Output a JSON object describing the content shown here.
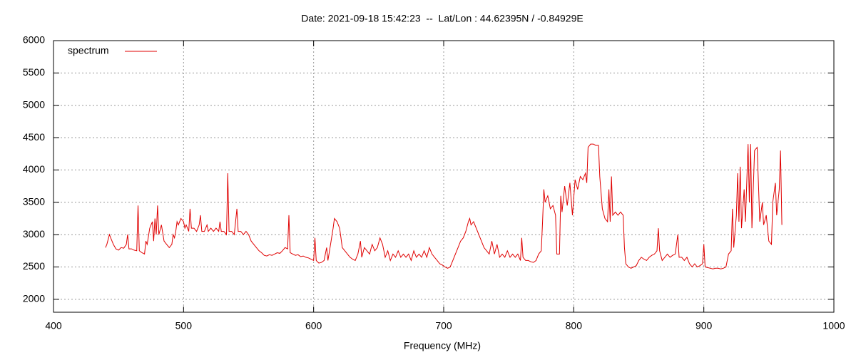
{
  "chart_data": {
    "type": "line",
    "title": "Date: 2021-09-18 15:42:23  --  Lat/Lon : 44.62395N / -0.84929E",
    "xlabel": "Frequency (MHz)",
    "xlim": [
      400,
      1000
    ],
    "xticks": [
      400,
      500,
      600,
      700,
      800,
      900,
      1000
    ],
    "ylim": [
      1800,
      6000
    ],
    "yticks": [
      2000,
      2500,
      3000,
      3500,
      4000,
      4500,
      5000,
      5500,
      6000
    ],
    "grid": true,
    "legend": "top-left",
    "series": [
      {
        "name": "spectrum",
        "color": "#e00000",
        "x": [
          440,
          441,
          443,
          444,
          446,
          448,
          450,
          452,
          454,
          456,
          457,
          458,
          460,
          462,
          464,
          465,
          466,
          468,
          470,
          471,
          472,
          474,
          476,
          477,
          478,
          479,
          480,
          481,
          483,
          485,
          487,
          489,
          491,
          492,
          493,
          494,
          495,
          496,
          498,
          500,
          501,
          502,
          504,
          505,
          506,
          508,
          510,
          512,
          513,
          514,
          516,
          518,
          519,
          521,
          523,
          525,
          527,
          528,
          529,
          531,
          533,
          534,
          535,
          537,
          539,
          541,
          542,
          544,
          546,
          548,
          550,
          552,
          554,
          556,
          558,
          560,
          562,
          564,
          566,
          568,
          570,
          572,
          574,
          576,
          578,
          580,
          581,
          582,
          584,
          586,
          588,
          590,
          592,
          594,
          596,
          598,
          600,
          601,
          602,
          604,
          606,
          608,
          610,
          611,
          613,
          615,
          616,
          618,
          620,
          621,
          622,
          624,
          626,
          628,
          630,
          632,
          634,
          636,
          637,
          639,
          641,
          643,
          645,
          647,
          649,
          651,
          653,
          655,
          657,
          659,
          661,
          663,
          665,
          667,
          669,
          671,
          673,
          675,
          677,
          679,
          681,
          683,
          685,
          687,
          689,
          691,
          693,
          695,
          697,
          699,
          701,
          703,
          705,
          707,
          709,
          711,
          713,
          715,
          717,
          719,
          720,
          721,
          723,
          725,
          727,
          729,
          731,
          733,
          735,
          737,
          739,
          741,
          743,
          745,
          747,
          749,
          751,
          753,
          755,
          757,
          759,
          760,
          761,
          763,
          765,
          767,
          769,
          771,
          773,
          775,
          776,
          777,
          778,
          780,
          782,
          784,
          786,
          787,
          789,
          790,
          791,
          793,
          795,
          797,
          799,
          801,
          803,
          805,
          807,
          809,
          810,
          811,
          813,
          815,
          817,
          819,
          820,
          822,
          824,
          826,
          827,
          828,
          829,
          830,
          832,
          834,
          836,
          838,
          839,
          840,
          842,
          844,
          846,
          848,
          850,
          852,
          854,
          856,
          858,
          860,
          862,
          864,
          865,
          866,
          868,
          870,
          872,
          874,
          876,
          878,
          880,
          881,
          883,
          885,
          887,
          889,
          891,
          893,
          895,
          897,
          899,
          900,
          901,
          903,
          905,
          907,
          909,
          911,
          913,
          915,
          917,
          919,
          921,
          922,
          923,
          925,
          926,
          927,
          928,
          929,
          931,
          932,
          934,
          935,
          936,
          937,
          939,
          941,
          942,
          943,
          945,
          946,
          948,
          950,
          952,
          953,
          955,
          956,
          958,
          959,
          960
        ],
        "values": [
          2800,
          2850,
          3000,
          2950,
          2850,
          2780,
          2760,
          2800,
          2790,
          2850,
          3000,
          2780,
          2780,
          2760,
          2750,
          3450,
          2750,
          2720,
          2700,
          2900,
          2850,
          3100,
          3200,
          2900,
          3250,
          3000,
          3450,
          3000,
          3150,
          2900,
          2850,
          2800,
          2850,
          3000,
          2950,
          3050,
          3200,
          3150,
          3250,
          3200,
          3100,
          3150,
          3050,
          3400,
          3100,
          3100,
          3050,
          3150,
          3300,
          3050,
          3050,
          3150,
          3050,
          3100,
          3050,
          3100,
          3050,
          3200,
          3050,
          3050,
          3000,
          3950,
          3050,
          3050,
          3000,
          3400,
          3050,
          3050,
          3000,
          3050,
          3000,
          2900,
          2850,
          2800,
          2750,
          2720,
          2680,
          2670,
          2690,
          2680,
          2700,
          2720,
          2710,
          2750,
          2800,
          2780,
          3300,
          2720,
          2700,
          2680,
          2690,
          2660,
          2670,
          2650,
          2640,
          2620,
          2600,
          2950,
          2600,
          2560,
          2570,
          2600,
          2800,
          2600,
          2850,
          3100,
          3250,
          3200,
          3100,
          2950,
          2800,
          2750,
          2700,
          2650,
          2620,
          2600,
          2700,
          2900,
          2650,
          2800,
          2750,
          2700,
          2850,
          2750,
          2800,
          2950,
          2850,
          2650,
          2750,
          2600,
          2700,
          2650,
          2750,
          2650,
          2700,
          2650,
          2700,
          2600,
          2750,
          2650,
          2700,
          2650,
          2750,
          2650,
          2800,
          2700,
          2650,
          2600,
          2550,
          2530,
          2500,
          2480,
          2500,
          2600,
          2700,
          2800,
          2900,
          2950,
          3050,
          3200,
          3250,
          3150,
          3200,
          3100,
          3000,
          2900,
          2800,
          2750,
          2700,
          2900,
          2700,
          2850,
          2650,
          2700,
          2650,
          2750,
          2650,
          2700,
          2650,
          2700,
          2600,
          2950,
          2650,
          2600,
          2600,
          2580,
          2570,
          2600,
          2700,
          2750,
          3200,
          3700,
          3500,
          3600,
          3400,
          3450,
          3300,
          2700,
          2700,
          3600,
          3350,
          3750,
          3450,
          3800,
          3300,
          3850,
          3700,
          3900,
          3850,
          3950,
          3800,
          4350,
          4400,
          4400,
          4380,
          4380,
          3900,
          3400,
          3250,
          3200,
          3700,
          3200,
          3900,
          3300,
          3350,
          3300,
          3350,
          3300,
          2800,
          2550,
          2500,
          2480,
          2500,
          2520,
          2600,
          2650,
          2620,
          2600,
          2650,
          2680,
          2700,
          2750,
          3100,
          2750,
          2600,
          2650,
          2700,
          2650,
          2680,
          2700,
          3000,
          2650,
          2650,
          2600,
          2650,
          2550,
          2500,
          2550,
          2500,
          2520,
          2550,
          2850,
          2500,
          2490,
          2480,
          2470,
          2480,
          2480,
          2470,
          2480,
          2500,
          2700,
          2750,
          3400,
          2800,
          3300,
          3950,
          3200,
          4050,
          3100,
          3700,
          3200,
          4400,
          3500,
          4400,
          3100,
          4300,
          4350,
          3800,
          3200,
          3500,
          3150,
          3300,
          2900,
          2850,
          3500,
          3800,
          3300,
          3700,
          4300,
          3150
        ]
      }
    ]
  }
}
